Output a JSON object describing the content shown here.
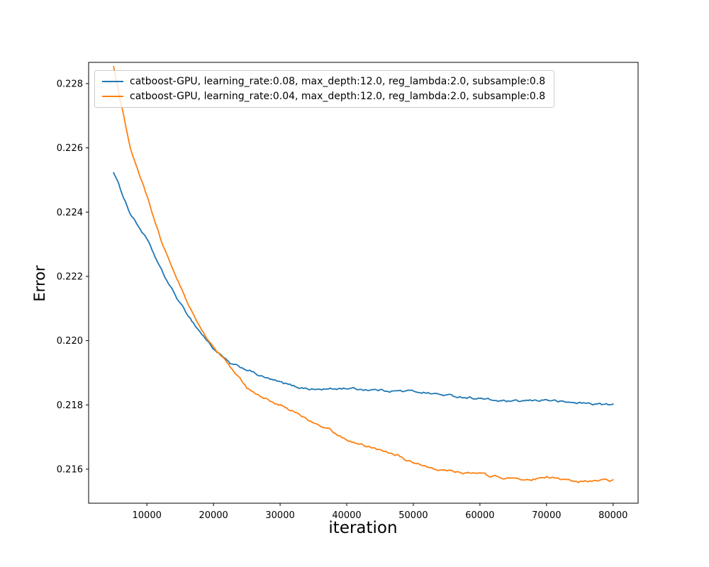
{
  "chart_data": {
    "type": "line",
    "title": "",
    "xlabel": "iteration",
    "ylabel": "Error",
    "grid": false,
    "legend_position": "upper left",
    "xlim": [
      1250,
      83750
    ],
    "ylim": [
      0.21494,
      0.22866
    ],
    "xticks": {
      "values": [
        10000,
        20000,
        30000,
        40000,
        50000,
        60000,
        70000,
        80000
      ],
      "labels": [
        "10000",
        "20000",
        "30000",
        "40000",
        "50000",
        "60000",
        "70000",
        "80000"
      ]
    },
    "yticks": {
      "values": [
        0.216,
        0.218,
        0.22,
        0.222,
        0.224,
        0.226,
        0.228
      ],
      "labels": [
        "0.216",
        "0.218",
        "0.220",
        "0.222",
        "0.224",
        "0.226",
        "0.228"
      ]
    },
    "x": [
      5000,
      7500,
      10000,
      12500,
      15000,
      17500,
      20000,
      22500,
      25000,
      27500,
      30000,
      32500,
      35000,
      37500,
      40000,
      42500,
      45000,
      47500,
      50000,
      52500,
      55000,
      57500,
      60000,
      62500,
      65000,
      67500,
      70000,
      72500,
      75000,
      77500,
      80000
    ],
    "series": [
      {
        "name": "catboost-GPU, learning_rate:0.08, max_depth:12.0, reg_lambda:2.0, subsample:0.8",
        "color": "#1f77b4",
        "values": [
          0.22525,
          0.22395,
          0.22315,
          0.22205,
          0.22115,
          0.2204,
          0.21975,
          0.21928,
          0.2191,
          0.21886,
          0.2187,
          0.21856,
          0.21848,
          0.21849,
          0.21852,
          0.21848,
          0.21846,
          0.21843,
          0.21843,
          0.21836,
          0.2183,
          0.21824,
          0.2182,
          0.21813,
          0.2181,
          0.21813,
          0.21816,
          0.21809,
          0.21806,
          0.21803,
          0.218
        ]
      },
      {
        "name": "catboost-GPU, learning_rate:0.04, max_depth:12.0, reg_lambda:2.0, subsample:0.8",
        "color": "#ff7f0e",
        "values": [
          0.2285,
          0.226,
          0.2245,
          0.2229,
          0.2217,
          0.22055,
          0.2198,
          0.2192,
          0.21852,
          0.2182,
          0.218,
          0.21775,
          0.21742,
          0.21722,
          0.2169,
          0.21675,
          0.2166,
          0.21645,
          0.21617,
          0.21605,
          0.21596,
          0.2159,
          0.21586,
          0.21576,
          0.2157,
          0.21566,
          0.21576,
          0.21566,
          0.2156,
          0.21563,
          0.21565
        ]
      }
    ]
  }
}
